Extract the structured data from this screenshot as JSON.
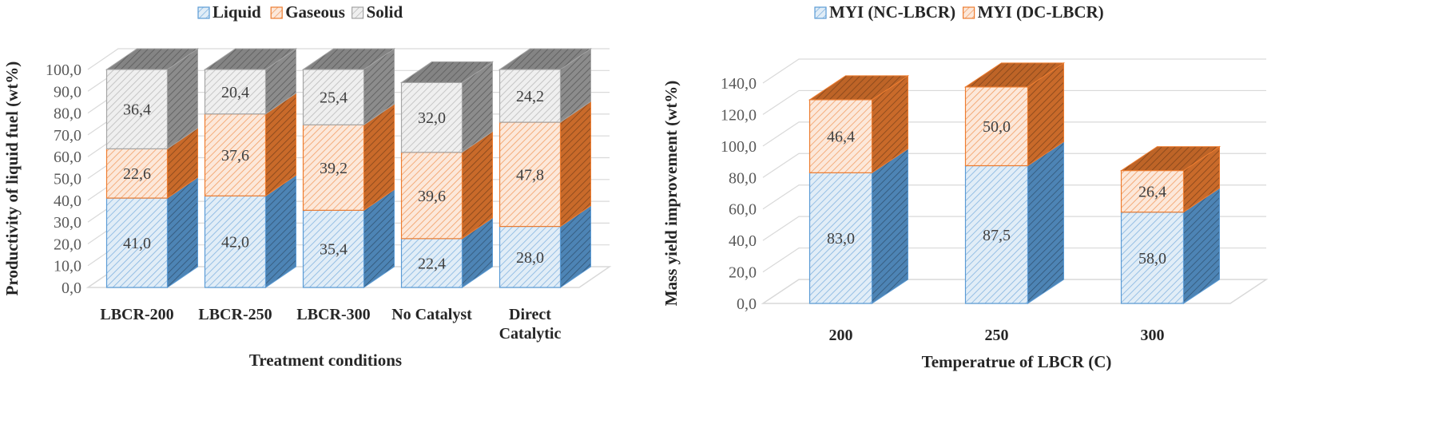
{
  "colors": {
    "liquid": "#5b9bd5",
    "gaseous": "#ed7d31",
    "solid": "#a5a5a5",
    "grid": "#d9d9d9"
  },
  "chart_data": [
    {
      "type": "bar",
      "stacked": true,
      "three_d": true,
      "categories": [
        "LBCR-200",
        "LBCR-250",
        "LBCR-300",
        "No Catalyst",
        "Direct Catalytic"
      ],
      "category_lines": [
        [
          "LBCR-200"
        ],
        [
          "LBCR-250"
        ],
        [
          "LBCR-300"
        ],
        [
          "No Catalyst"
        ],
        [
          "Direct",
          "Catalytic"
        ]
      ],
      "series": [
        {
          "name": "Liquid",
          "color_key": "liquid",
          "values": [
            41.0,
            42.0,
            35.4,
            22.4,
            28.0
          ],
          "labels": [
            "41,0",
            "42,0",
            "35,4",
            "22,4",
            "28,0"
          ]
        },
        {
          "name": "Gaseous",
          "color_key": "gaseous",
          "values": [
            22.6,
            37.6,
            39.2,
            39.6,
            47.8
          ],
          "labels": [
            "22,6",
            "37,6",
            "39,2",
            "39,6",
            "47,8"
          ]
        },
        {
          "name": "Solid",
          "color_key": "solid",
          "values": [
            36.4,
            20.4,
            25.4,
            32.0,
            24.2
          ],
          "labels": [
            "36,4",
            "20,4",
            "25,4",
            "32,0",
            "24,2"
          ]
        }
      ],
      "xlabel": "Treatment conditions",
      "ylabel": "Productivity of liquid fuel (wt%)",
      "ylim": [
        0,
        100
      ],
      "yticks": [
        "0,0",
        "10,0",
        "20,0",
        "30,0",
        "40,0",
        "50,0",
        "60,0",
        "70,0",
        "80,0",
        "90,0",
        "100,0"
      ],
      "legend_position": "top"
    },
    {
      "type": "bar",
      "stacked": true,
      "three_d": true,
      "categories": [
        "200",
        "250",
        "300"
      ],
      "category_lines": [
        [
          "200"
        ],
        [
          "250"
        ],
        [
          "300"
        ]
      ],
      "series": [
        {
          "name": "MYI (NC-LBCR)",
          "color_key": "liquid",
          "values": [
            83.0,
            87.5,
            58.0
          ],
          "labels": [
            "83,0",
            "87,5",
            "58,0"
          ]
        },
        {
          "name": "MYI (DC-LBCR)",
          "color_key": "gaseous",
          "values": [
            46.4,
            50.0,
            26.4
          ],
          "labels": [
            "46,4",
            "50,0",
            "26,4"
          ]
        }
      ],
      "xlabel": "Temperatrue of LBCR (C)",
      "ylabel": "Mass yield improvement (wt%)",
      "ylim": [
        0,
        140
      ],
      "yticks": [
        "0,0",
        "20,0",
        "40,0",
        "60,0",
        "80,0",
        "100,0",
        "120,0",
        "140,0"
      ],
      "legend_position": "top"
    }
  ]
}
